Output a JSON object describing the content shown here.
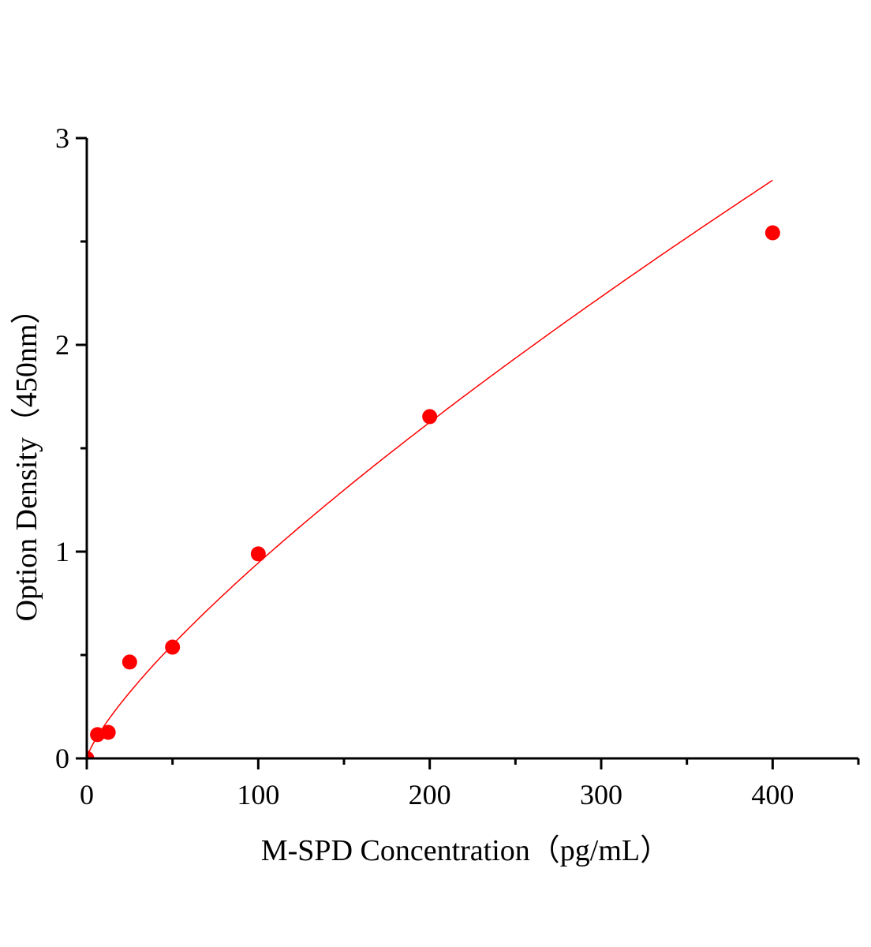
{
  "chart_data": {
    "type": "scatter",
    "title": "",
    "xlabel": "M-SPD Concentration（pg/mL）",
    "ylabel": "Option Density（450nm）",
    "xlim": [
      0,
      450
    ],
    "ylim": [
      0,
      3
    ],
    "x_ticks": [
      0,
      100,
      200,
      300,
      400
    ],
    "y_ticks": [
      0,
      1,
      2,
      3
    ],
    "x_minor_step": 50,
    "y_minor_step": 0.5,
    "grid": false,
    "legend": "none",
    "marker_color": "#ff0000",
    "curve_color": "#ff0000",
    "fit": "smooth curve through standards",
    "x": [
      0,
      6.25,
      12.5,
      25,
      50,
      100,
      200,
      400
    ],
    "y": [
      0,
      0.115,
      0.126,
      0.466,
      0.538,
      0.989,
      1.653,
      2.542
    ]
  }
}
